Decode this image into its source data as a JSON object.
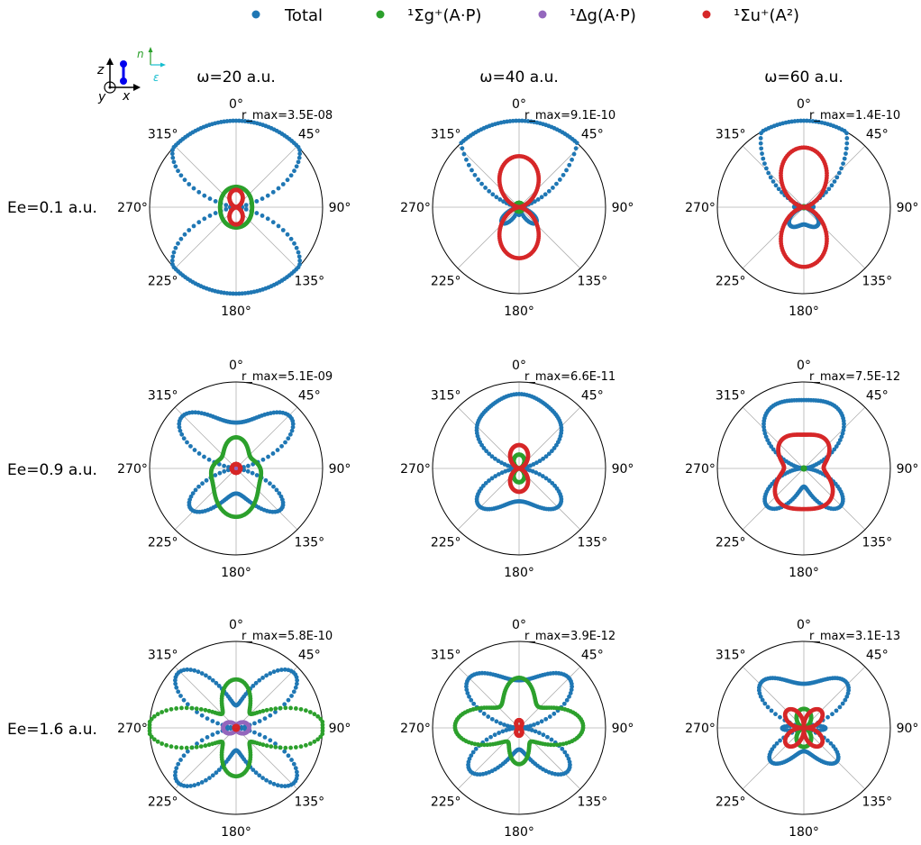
{
  "legend": [
    {
      "label": "Total",
      "color": "#1f77b4"
    },
    {
      "label": "¹Σg⁺(A·P)",
      "color": "#2ca02c"
    },
    {
      "label": "¹Δg(A·P)",
      "color": "#9467bd"
    },
    {
      "label": "¹Σu⁺(A²)",
      "color": "#d62728"
    }
  ],
  "inset_labels": {
    "z": "z",
    "x": "x",
    "y": "y",
    "n": "n",
    "e": "ε"
  },
  "column_titles": [
    "ω=20 a.u.",
    "ω=40 a.u.",
    "ω=60 a.u."
  ],
  "row_labels": [
    "Ee=0.1 a.u.",
    "Ee=0.9 a.u.",
    "Ee=1.6 a.u."
  ],
  "angle_ticks": [
    "0°",
    "45°",
    "90°",
    "135°",
    "180°",
    "225°",
    "270°",
    "315°"
  ],
  "chart_data": {
    "type": "scatter",
    "coordinate_system": "polar",
    "theta_zero_location": "top",
    "theta_direction": "clockwise",
    "angle_ticks_deg": [
      0,
      45,
      90,
      135,
      180,
      225,
      270,
      315
    ],
    "grid": true,
    "legend_placement": "top",
    "rows": [
      "Ee=0.1 a.u.",
      "Ee=0.9 a.u.",
      "Ee=1.6 a.u."
    ],
    "columns": [
      "ω=20 a.u.",
      "ω=40 a.u.",
      "ω=60 a.u."
    ],
    "series_colors": {
      "Total": "#1f77b4",
      "Sigma_g_AP": "#2ca02c",
      "Delta_g_AP": "#9467bd",
      "Sigma_u_A2": "#d62728"
    },
    "panels": [
      {
        "row": 0,
        "col": 0,
        "rmax": "r_max=3.5E-08",
        "series": [
          {
            "name": "Total",
            "components": [
              [
                0,
                0.8,
                0
              ],
              [
                2,
                0.55,
                0
              ],
              [
                4,
                -0.22,
                0
              ],
              [
                6,
                0.1,
                0
              ]
            ]
          },
          {
            "name": "Sigma_g_AP",
            "components": [
              [
                0,
                0.21,
                0
              ],
              [
                2,
                0.025,
                0
              ]
            ]
          },
          {
            "name": "Sigma_u_A2",
            "components": [
              [
                2,
                0.2,
                -1
              ]
            ],
            "type": "abs_cos"
          }
        ]
      },
      {
        "row": 0,
        "col": 1,
        "rmax": "r_max=9.1E-10",
        "series": [
          {
            "name": "Total",
            "components": [
              [
                0,
                0.49,
                0
              ],
              [
                1,
                0.68,
                0
              ],
              [
                2,
                0.42,
                0
              ],
              [
                3,
                0.22,
                0
              ],
              [
                4,
                -0.1,
                0
              ]
            ]
          },
          {
            "name": "Sigma_g_AP",
            "components": [
              [
                0,
                0.05,
                0
              ]
            ]
          },
          {
            "name": "Sigma_u_A2",
            "components": [
              [
                2,
                0.59,
                -1
              ]
            ],
            "type": "abs_cos"
          }
        ]
      },
      {
        "row": 0,
        "col": 2,
        "rmax": "r_max=1.4E-10",
        "series": [
          {
            "name": "Total",
            "components": [
              [
                0,
                0.38,
                0
              ],
              [
                1,
                0.42,
                0
              ],
              [
                2,
                0.45,
                0
              ],
              [
                3,
                0.17,
                0
              ],
              [
                4,
                -0.04,
                0
              ]
            ]
          },
          {
            "name": "Sigma_g_AP",
            "components": [
              [
                0,
                0.01,
                0
              ]
            ]
          },
          {
            "name": "Sigma_u_A2",
            "components": [
              [
                2,
                0.69,
                -1
              ]
            ],
            "type": "abs_cos"
          }
        ]
      },
      {
        "row": 1,
        "col": 0,
        "rmax": "r_max=5.1E-09",
        "series": [
          {
            "name": "Total",
            "components": [
              [
                0,
                0.48,
                0
              ],
              [
                1,
                0.12,
                0
              ],
              [
                2,
                0.15,
                0
              ],
              [
                4,
                -0.3,
                0
              ],
              [
                6,
                0.08,
                0
              ]
            ]
          },
          {
            "name": "Sigma_g_AP",
            "components": [
              [
                0,
                0.33,
                0
              ],
              [
                1,
                -0.1,
                0
              ],
              [
                2,
                0.09,
                0
              ],
              [
                4,
                0.04,
                0
              ]
            ]
          },
          {
            "name": "Delta_g_AP",
            "components": [
              [
                0,
                0.03,
                0
              ],
              [
                2,
                0.02,
                0
              ]
            ]
          },
          {
            "name": "Sigma_u_A2",
            "components": [
              [
                0,
                0.05,
                0
              ]
            ]
          }
        ]
      },
      {
        "row": 1,
        "col": 1,
        "rmax": "r_max=6.6E-11",
        "series": [
          {
            "name": "Total",
            "components": [
              [
                0,
                0.49,
                0
              ],
              [
                1,
                0.14,
                0
              ],
              [
                2,
                0.25,
                0
              ],
              [
                3,
                0.1,
                0
              ],
              [
                4,
                -0.17,
                0
              ],
              [
                6,
                0.05,
                0
              ]
            ]
          },
          {
            "name": "Sigma_g_AP",
            "components": [
              [
                2,
                0.16,
                -1
              ]
            ],
            "type": "abs_cos"
          },
          {
            "name": "Sigma_u_A2",
            "components": [
              [
                2,
                0.27,
                -1
              ]
            ],
            "type": "abs_cos"
          }
        ]
      },
      {
        "row": 1,
        "col": 2,
        "rmax": "r_max=7.5E-12",
        "series": [
          {
            "name": "Total",
            "components": [
              [
                0,
                0.45,
                0
              ],
              [
                1,
                0.16,
                0
              ],
              [
                2,
                0.23,
                0
              ],
              [
                3,
                0.13,
                0
              ],
              [
                4,
                -0.18,
                0
              ]
            ]
          },
          {
            "name": "Sigma_g_AP",
            "components": [
              [
                0,
                0.01,
                0
              ]
            ]
          },
          {
            "name": "Sigma_u_A2",
            "components": [
              [
                0,
                0.38,
                0
              ],
              [
                1,
                -0.04,
                0
              ],
              [
                2,
                0.1,
                0
              ],
              [
                4,
                -0.05,
                0
              ]
            ]
          }
        ]
      },
      {
        "row": 2,
        "col": 0,
        "rmax": "r_max=5.8E-10",
        "series": [
          {
            "name": "Total",
            "components": [
              [
                0,
                0.52,
                0
              ],
              [
                2,
                0.08,
                0
              ],
              [
                4,
                -0.4,
                0
              ],
              [
                6,
                0.06,
                0
              ]
            ]
          },
          {
            "name": "Sigma_g_AP",
            "components": [
              [
                0,
                0.51,
                0
              ],
              [
                2,
                -0.18,
                0
              ],
              [
                4,
                0.28,
                0
              ],
              [
                6,
                -0.05,
                0
              ]
            ]
          },
          {
            "name": "Delta_g_AP",
            "components": [
              [
                0,
                0.09,
                0
              ],
              [
                2,
                -0.06,
                0
              ]
            ]
          },
          {
            "name": "Sigma_u_A2",
            "components": [
              [
                0,
                0.02,
                0
              ]
            ]
          }
        ]
      },
      {
        "row": 2,
        "col": 1,
        "rmax": "r_max=3.9E-12",
        "series": [
          {
            "name": "Total",
            "components": [
              [
                0,
                0.5,
                0
              ],
              [
                1,
                0.1,
                0
              ],
              [
                2,
                0.12,
                0
              ],
              [
                3,
                0.05,
                0
              ],
              [
                4,
                -0.28,
                0
              ],
              [
                6,
                0.06,
                0
              ]
            ]
          },
          {
            "name": "Sigma_g_AP",
            "components": [
              [
                0,
                0.45,
                0
              ],
              [
                1,
                0.08,
                0
              ],
              [
                2,
                -0.12,
                0
              ],
              [
                4,
                0.17,
                0
              ]
            ]
          },
          {
            "name": "Sigma_u_A2",
            "components": [
              [
                4,
                0.09,
                -1
              ]
            ],
            "type": "abs_cos"
          }
        ]
      },
      {
        "row": 2,
        "col": 2,
        "rmax": "r_max=3.1E-13",
        "series": [
          {
            "name": "Total",
            "components": [
              [
                0,
                0.35,
                0
              ],
              [
                1,
                0.12,
                0
              ],
              [
                2,
                0.26,
                0
              ],
              [
                4,
                -0.28,
                0
              ],
              [
                6,
                0.06,
                0
              ]
            ]
          },
          {
            "name": "Sigma_g_AP",
            "components": [
              [
                2,
                0.22,
                -1
              ]
            ],
            "type": "abs_cos"
          },
          {
            "name": "Sigma_u_A2",
            "components": [
              [
                2,
                0.26,
                0
              ],
              [
                4,
                0.06,
                0
              ]
            ],
            "type": "abs_sin_shift"
          }
        ]
      }
    ]
  }
}
